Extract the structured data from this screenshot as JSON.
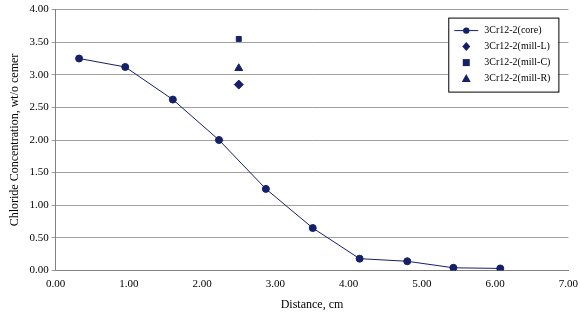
{
  "chart_data": {
    "type": "scatter",
    "x_label": "Distance, cm",
    "y_label": "Chloride Concentration, wt/o cemer",
    "xlim": [
      0,
      7
    ],
    "xticks": [
      {
        "value": 0,
        "label": "0.00"
      },
      {
        "value": 1,
        "label": "1.00"
      },
      {
        "value": 2,
        "label": "2.00"
      },
      {
        "value": 3,
        "label": "3.00"
      },
      {
        "value": 4,
        "label": "4.00"
      },
      {
        "value": 5,
        "label": "5.00"
      },
      {
        "value": 6,
        "label": "6.00"
      },
      {
        "value": 7,
        "label": "7.00"
      }
    ],
    "ylim": [
      0,
      4
    ],
    "yticks": [
      {
        "value": 0,
        "label": "0.00"
      },
      {
        "value": 0.5,
        "label": "0.50"
      },
      {
        "value": 1,
        "label": "1.00"
      },
      {
        "value": 1.5,
        "label": "1.50"
      },
      {
        "value": 2,
        "label": "2.00"
      },
      {
        "value": 2.5,
        "label": "2.50"
      },
      {
        "value": 3,
        "label": "3.00"
      },
      {
        "value": 3.5,
        "label": "3.50"
      },
      {
        "value": 4,
        "label": "4.00"
      }
    ],
    "grid": "y",
    "legend": "upper right",
    "series": [
      {
        "name": "3Cr12-2(core)",
        "type": "line",
        "marker": "circle",
        "line_style": "solid",
        "color": "#14206a",
        "x": [
          0.32,
          0.95,
          1.6,
          2.23,
          2.87,
          3.51,
          4.15,
          4.8,
          5.43,
          6.07
        ],
        "values": [
          3.25,
          3.12,
          2.62,
          2.0,
          1.25,
          0.65,
          0.18,
          0.14,
          0.04,
          0.03
        ]
      },
      {
        "name": "3Cr12-2(mill-L)",
        "type": "scatter",
        "marker": "diamond",
        "color": "#14206a",
        "x": [
          2.5
        ],
        "values": [
          2.85
        ]
      },
      {
        "name": "3Cr12-2(mill-C)",
        "type": "scatter",
        "marker": "square",
        "color": "#14206a",
        "x": [
          2.5
        ],
        "values": [
          3.55
        ]
      },
      {
        "name": "3Cr12-2(mill-R)",
        "type": "scatter",
        "marker": "triangle",
        "color": "#14206a",
        "x": [
          2.5
        ],
        "values": [
          3.1
        ]
      }
    ]
  }
}
